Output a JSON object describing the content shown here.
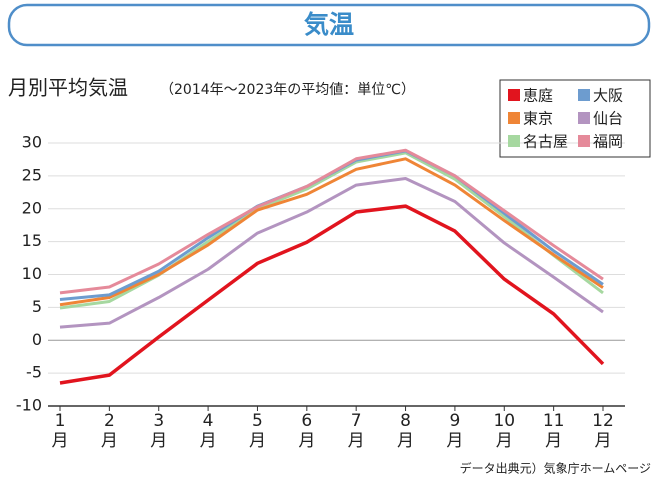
{
  "header": "気温",
  "chart_data": {
    "type": "line",
    "title": "月別平均気温",
    "subtitle": "（2014年～2023年の平均値：単位℃）",
    "source": "データ出典元）気象庁ホームページ",
    "categories": [
      "1月",
      "2月",
      "3月",
      "4月",
      "5月",
      "6月",
      "7月",
      "8月",
      "9月",
      "10月",
      "11月",
      "12月"
    ],
    "ylim": [
      -10,
      30
    ],
    "yticks": [
      -10,
      -5,
      0,
      5,
      10,
      15,
      20,
      25,
      30
    ],
    "grid": true,
    "legend": "top-right",
    "series": [
      {
        "name": "恵庭",
        "color": "#e1141e",
        "values": [
          -6.5,
          -5.3,
          0.5,
          6.1,
          11.7,
          14.9,
          19.5,
          20.4,
          16.6,
          9.3,
          4.0,
          -3.6
        ]
      },
      {
        "name": "東京",
        "color": "#ef8536",
        "values": [
          5.4,
          6.5,
          10.0,
          14.5,
          19.8,
          22.2,
          26.0,
          27.6,
          23.6,
          18.2,
          13.0,
          8.0
        ]
      },
      {
        "name": "名古屋",
        "color": "#a6d8a0",
        "values": [
          4.9,
          5.9,
          9.9,
          15.0,
          20.0,
          23.0,
          27.1,
          28.5,
          24.5,
          18.8,
          12.9,
          7.2
        ]
      },
      {
        "name": "大阪",
        "color": "#6d9ccf",
        "values": [
          6.2,
          6.9,
          10.5,
          15.6,
          20.4,
          23.4,
          27.4,
          28.8,
          25.0,
          19.3,
          13.6,
          8.5
        ]
      },
      {
        "name": "仙台",
        "color": "#b394c0",
        "values": [
          2.0,
          2.6,
          6.5,
          10.8,
          16.3,
          19.5,
          23.6,
          24.6,
          21.1,
          14.8,
          9.6,
          4.3
        ]
      },
      {
        "name": "福岡",
        "color": "#e58a9a",
        "values": [
          7.2,
          8.1,
          11.6,
          16.1,
          20.3,
          23.4,
          27.6,
          28.9,
          25.0,
          19.7,
          14.4,
          9.3
        ]
      }
    ]
  }
}
